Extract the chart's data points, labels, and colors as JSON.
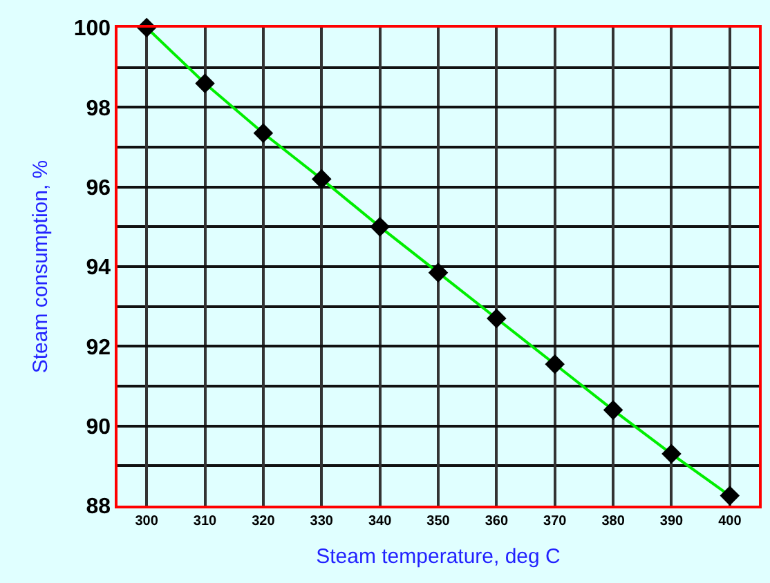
{
  "chart_data": {
    "type": "line",
    "xlabel": "Steam temperature, deg C",
    "ylabel": "Steam consumption, %",
    "x": [
      300,
      310,
      320,
      330,
      340,
      350,
      360,
      370,
      380,
      390,
      400
    ],
    "series": [
      {
        "color": "#00ee00",
        "values": [
          100,
          98.6,
          97.35,
          96.2,
          95.0,
          93.85,
          92.7,
          91.55,
          90.4,
          89.3,
          88.25
        ]
      }
    ],
    "xlim": [
      295,
      405
    ],
    "xticks": [
      300,
      310,
      320,
      330,
      340,
      350,
      360,
      370,
      380,
      390,
      400
    ],
    "ylim": [
      88,
      100
    ],
    "yticks": [
      88,
      90,
      92,
      94,
      96,
      98,
      100
    ],
    "grid": true,
    "marker": "diamond",
    "line_style": "solid",
    "legend": false
  }
}
